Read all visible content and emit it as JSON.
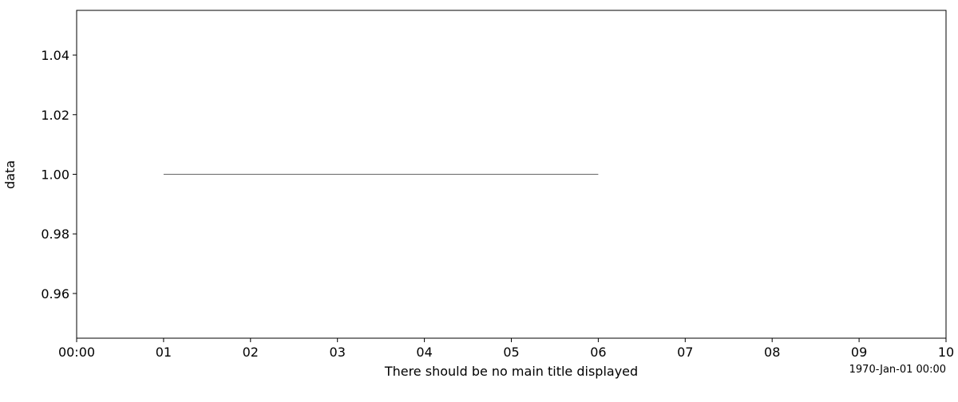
{
  "chart_data": {
    "type": "line",
    "title": "",
    "xlabel": "There should be no main title displayed",
    "ylabel": "data",
    "x_offset_label": "1970-Jan-01 00:00",
    "xlim": [
      "1970-01-01T00:00:00",
      "1970-01-01T00:00:10"
    ],
    "ylim": [
      0.945,
      1.055
    ],
    "x_tick_values": [
      "1970-01-01T00:00:00",
      "1970-01-01T00:00:01",
      "1970-01-01T00:00:02",
      "1970-01-01T00:00:03",
      "1970-01-01T00:00:04",
      "1970-01-01T00:00:05",
      "1970-01-01T00:00:06",
      "1970-01-01T00:00:07",
      "1970-01-01T00:00:08",
      "1970-01-01T00:00:09",
      "1970-01-01T00:00:10"
    ],
    "x_tick_labels": [
      "00:00",
      "01",
      "02",
      "03",
      "04",
      "05",
      "06",
      "07",
      "08",
      "09",
      "10"
    ],
    "y_tick_values": [
      0.96,
      0.98,
      1.0,
      1.02,
      1.04
    ],
    "y_tick_labels": [
      "0.96",
      "0.98",
      "1.00",
      "1.02",
      "1.04"
    ],
    "grid": false,
    "series": [
      {
        "x": [
          "1970-01-01T00:00:01",
          "1970-01-01T00:00:06"
        ],
        "y": [
          1.0,
          1.0
        ],
        "color": "#333333"
      }
    ]
  }
}
